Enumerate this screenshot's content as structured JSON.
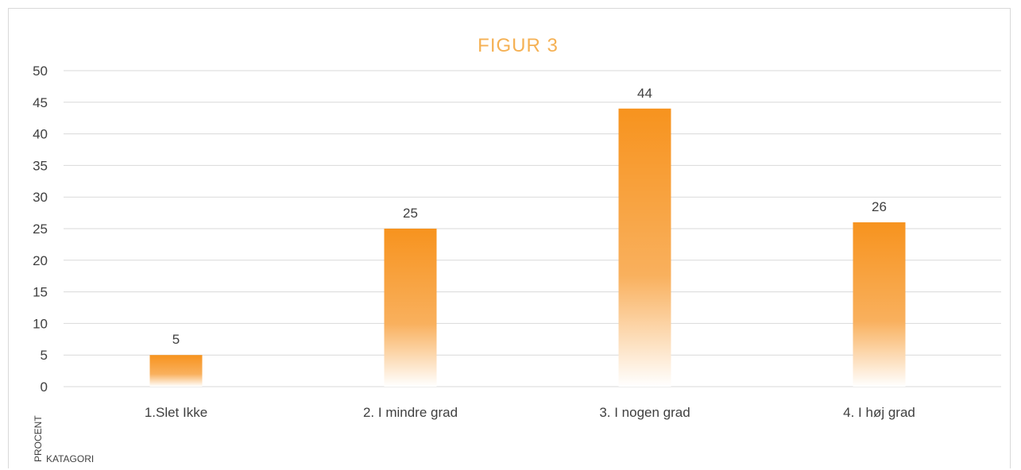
{
  "chart_data": {
    "type": "bar",
    "title": "FIGUR 3",
    "xlabel": "KATAGORI",
    "ylabel": "PROCENT",
    "categories": [
      "1.Slet Ikke",
      "2. I mindre grad",
      "3. I nogen grad",
      "4. I høj grad"
    ],
    "values": [
      5,
      25,
      44,
      26
    ],
    "data_labels": [
      "5",
      "25",
      "44",
      "26"
    ],
    "ylim": [
      0,
      50
    ],
    "yticks": [
      "0",
      "5",
      "10",
      "15",
      "20",
      "25",
      "30",
      "35",
      "40",
      "45",
      "50"
    ],
    "grid": true,
    "legend": "none",
    "colors": {
      "bar_top": "#f7931e",
      "bar_bottom": "#ffffff",
      "title": "#f5b154"
    }
  }
}
